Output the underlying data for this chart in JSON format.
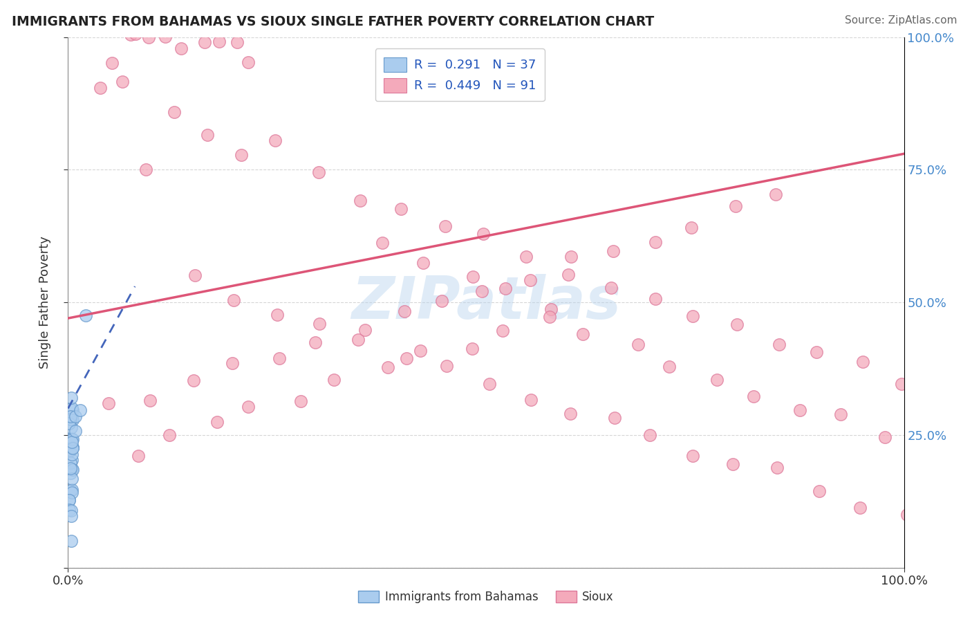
{
  "title": "IMMIGRANTS FROM BAHAMAS VS SIOUX SINGLE FATHER POVERTY CORRELATION CHART",
  "source": "Source: ZipAtlas.com",
  "ylabel": "Single Father Poverty",
  "legend_label1": "Immigrants from Bahamas",
  "legend_label2": "Sioux",
  "legend_r1": "R =  0.291",
  "legend_n1": "N = 37",
  "legend_r2": "R =  0.449",
  "legend_n2": "N = 91",
  "watermark": "ZIPatlas",
  "blue_fill": "#aaccee",
  "blue_edge": "#6699cc",
  "pink_fill": "#f4aabb",
  "pink_edge": "#dd7799",
  "blue_line_color": "#4466bb",
  "pink_line_color": "#dd5577",
  "background_color": "#ffffff",
  "grid_color": "#cccccc",
  "xlim": [
    0.0,
    1.0
  ],
  "ylim": [
    0.0,
    1.0
  ],
  "pink_line_x0": 0.0,
  "pink_line_y0": 0.47,
  "pink_line_x1": 1.0,
  "pink_line_y1": 0.78,
  "blue_line_x0": 0.0,
  "blue_line_y0": 0.3,
  "blue_line_x1": 0.08,
  "blue_line_y1": 0.53,
  "blue_dots_x": [
    0.003,
    0.003,
    0.004,
    0.003,
    0.004,
    0.005,
    0.003,
    0.004,
    0.005,
    0.004,
    0.003,
    0.003,
    0.004,
    0.005,
    0.003,
    0.004,
    0.003,
    0.004,
    0.005,
    0.003,
    0.004,
    0.003,
    0.004,
    0.005,
    0.003,
    0.004,
    0.003,
    0.003,
    0.004,
    0.003,
    0.005,
    0.006,
    0.008,
    0.01,
    0.015,
    0.02,
    0.003
  ],
  "blue_dots_y": [
    0.18,
    0.2,
    0.22,
    0.25,
    0.28,
    0.3,
    0.15,
    0.17,
    0.2,
    0.22,
    0.24,
    0.26,
    0.28,
    0.3,
    0.32,
    0.19,
    0.21,
    0.23,
    0.25,
    0.27,
    0.29,
    0.14,
    0.16,
    0.18,
    0.13,
    0.15,
    0.12,
    0.11,
    0.1,
    0.09,
    0.22,
    0.24,
    0.26,
    0.28,
    0.3,
    0.48,
    0.05
  ],
  "pink_dots_x": [
    0.04,
    0.07,
    0.05,
    0.08,
    0.1,
    0.12,
    0.14,
    0.16,
    0.18,
    0.2,
    0.22,
    0.06,
    0.09,
    0.13,
    0.17,
    0.21,
    0.25,
    0.3,
    0.35,
    0.4,
    0.45,
    0.5,
    0.55,
    0.6,
    0.65,
    0.7,
    0.75,
    0.8,
    0.85,
    0.9,
    0.95,
    1.0,
    0.38,
    0.42,
    0.48,
    0.52,
    0.58,
    0.62,
    0.68,
    0.72,
    0.78,
    0.82,
    0.88,
    0.92,
    0.98,
    0.15,
    0.2,
    0.25,
    0.3,
    0.35,
    0.4,
    0.45,
    0.5,
    0.55,
    0.6,
    0.65,
    0.7,
    0.75,
    0.8,
    0.85,
    0.9,
    0.95,
    1.0,
    0.05,
    0.1,
    0.15,
    0.2,
    0.25,
    0.3,
    0.35,
    0.4,
    0.45,
    0.5,
    0.55,
    0.6,
    0.65,
    0.7,
    0.75,
    0.8,
    0.85,
    0.08,
    0.12,
    0.18,
    0.22,
    0.28,
    0.32,
    0.38,
    0.42,
    0.48,
    0.52,
    0.58
  ],
  "pink_dots_y": [
    0.9,
    1.0,
    0.95,
    1.0,
    1.0,
    1.0,
    0.98,
    1.0,
    1.0,
    1.0,
    0.95,
    0.92,
    0.75,
    0.85,
    0.82,
    0.78,
    0.8,
    0.75,
    0.7,
    0.68,
    0.65,
    0.62,
    0.58,
    0.55,
    0.52,
    0.5,
    0.48,
    0.45,
    0.42,
    0.4,
    0.38,
    0.35,
    0.62,
    0.58,
    0.55,
    0.52,
    0.48,
    0.45,
    0.42,
    0.38,
    0.36,
    0.33,
    0.3,
    0.28,
    0.25,
    0.55,
    0.5,
    0.48,
    0.45,
    0.42,
    0.4,
    0.38,
    0.35,
    0.32,
    0.3,
    0.28,
    0.25,
    0.22,
    0.2,
    0.18,
    0.15,
    0.12,
    0.1,
    0.3,
    0.32,
    0.35,
    0.38,
    0.4,
    0.42,
    0.45,
    0.48,
    0.5,
    0.52,
    0.55,
    0.58,
    0.6,
    0.62,
    0.65,
    0.68,
    0.7,
    0.22,
    0.25,
    0.28,
    0.3,
    0.32,
    0.35,
    0.38,
    0.4,
    0.42,
    0.45,
    0.48
  ]
}
